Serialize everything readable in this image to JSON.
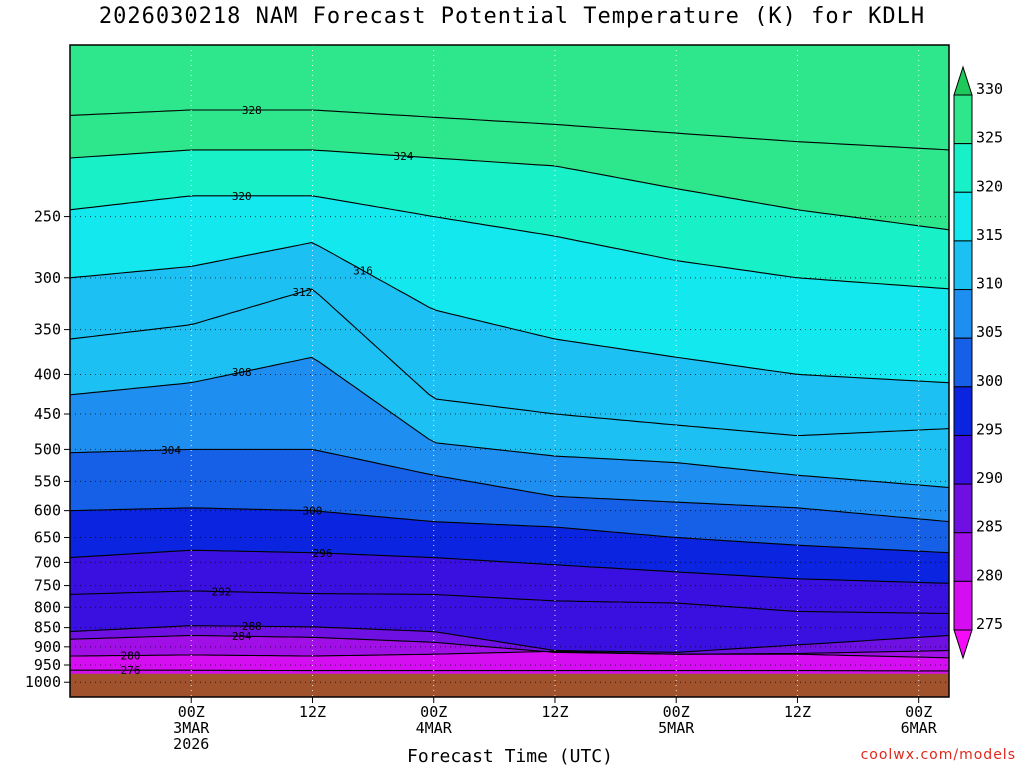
{
  "chart_data": {
    "type": "contour",
    "title": "2026030218 NAM Forecast Potential Temperature (K) for KDLH",
    "xlabel": "Forecast Time (UTC)",
    "ylabel": "",
    "credit": "coolwx.com/models",
    "y_axis": {
      "scale": "pressure (log)",
      "range": [
        1000,
        150
      ],
      "ticks": [
        250,
        300,
        350,
        400,
        450,
        500,
        550,
        600,
        650,
        700,
        750,
        800,
        850,
        900,
        950,
        1000
      ]
    },
    "x_axis": {
      "range_hours": [
        -6,
        81
      ],
      "ticks": [
        {
          "hour": 6,
          "lines": [
            "00Z",
            "3MAR",
            "2026"
          ]
        },
        {
          "hour": 18,
          "lines": [
            "12Z"
          ]
        },
        {
          "hour": 30,
          "lines": [
            "00Z",
            "4MAR"
          ]
        },
        {
          "hour": 42,
          "lines": [
            "12Z"
          ]
        },
        {
          "hour": 54,
          "lines": [
            "00Z",
            "5MAR"
          ]
        },
        {
          "hour": 66,
          "lines": [
            "12Z"
          ]
        },
        {
          "hour": 78,
          "lines": [
            "00Z",
            "6MAR"
          ]
        }
      ]
    },
    "grid": "dotted",
    "colorbar": {
      "labels": [
        330,
        325,
        320,
        315,
        310,
        305,
        300,
        295,
        290,
        285,
        280,
        275
      ],
      "bands": [
        {
          "lo": 330,
          "hi": 335,
          "color": "#1ec85a"
        },
        {
          "lo": 325,
          "hi": 330,
          "color": "#2ee68c"
        },
        {
          "lo": 320,
          "hi": 325,
          "color": "#18f0c8"
        },
        {
          "lo": 315,
          "hi": 320,
          "color": "#13e8ee"
        },
        {
          "lo": 310,
          "hi": 315,
          "color": "#1cc0f2"
        },
        {
          "lo": 305,
          "hi": 310,
          "color": "#1e8ef0"
        },
        {
          "lo": 300,
          "hi": 305,
          "color": "#1660e8"
        },
        {
          "lo": 295,
          "hi": 300,
          "color": "#0a24e0"
        },
        {
          "lo": 290,
          "hi": 295,
          "color": "#3a10e0"
        },
        {
          "lo": 285,
          "hi": 290,
          "color": "#6e10e2"
        },
        {
          "lo": 280,
          "hi": 285,
          "color": "#a00fe6"
        },
        {
          "lo": 275,
          "hi": 280,
          "color": "#d40ef0"
        },
        {
          "lo": 270,
          "hi": 275,
          "color": "#f40cf8"
        }
      ]
    },
    "ground_color": "#a0522d",
    "isentropes": [
      {
        "theta": 276,
        "label": "276",
        "label_hour": 0,
        "p": [
          965,
          965,
          966,
          966,
          966,
          966,
          966,
          967
        ]
      },
      {
        "theta": 280,
        "label": "280",
        "label_hour": 0,
        "p": [
          925,
          922,
          925,
          920,
          912,
          920,
          920,
          930
        ]
      },
      {
        "theta": 284,
        "label": "284",
        "label_hour": 11,
        "p": [
          880,
          870,
          875,
          888,
          915,
          920,
          918,
          910
        ]
      },
      {
        "theta": 288,
        "label": "288",
        "label_hour": 12,
        "p": [
          860,
          845,
          848,
          860,
          910,
          915,
          895,
          870
        ]
      },
      {
        "theta": 292,
        "label": "292",
        "label_hour": 9,
        "p": [
          770,
          762,
          768,
          770,
          785,
          790,
          810,
          815
        ]
      },
      {
        "theta": 296,
        "label": "296",
        "label_hour": 19,
        "p": [
          690,
          675,
          680,
          690,
          705,
          720,
          735,
          745
        ]
      },
      {
        "theta": 300,
        "label": "300",
        "label_hour": 18,
        "p": [
          600,
          595,
          600,
          620,
          630,
          650,
          665,
          680
        ]
      },
      {
        "theta": 304,
        "label": "304",
        "label_hour": 4,
        "p": [
          505,
          500,
          500,
          540,
          575,
          585,
          595,
          620
        ]
      },
      {
        "theta": 308,
        "label": "308",
        "label_hour": 11,
        "p": [
          425,
          410,
          380,
          490,
          510,
          520,
          540,
          560
        ]
      },
      {
        "theta": 312,
        "label": "312",
        "label_hour": 17,
        "p": [
          360,
          345,
          310,
          430,
          450,
          465,
          480,
          470
        ]
      },
      {
        "theta": 316,
        "label": "316",
        "label_hour": 23,
        "p": [
          300,
          290,
          270,
          330,
          360,
          380,
          400,
          410
        ]
      },
      {
        "theta": 320,
        "label": "320",
        "label_hour": 11,
        "p": [
          245,
          235,
          235,
          250,
          265,
          285,
          300,
          310
        ]
      },
      {
        "theta": 324,
        "label": "324",
        "label_hour": 27,
        "p": [
          210,
          205,
          205,
          210,
          215,
          230,
          245,
          260
        ]
      },
      {
        "theta": 328,
        "label": "328",
        "label_hour": 12,
        "p": [
          185,
          182,
          182,
          186,
          190,
          195,
          200,
          205
        ]
      }
    ],
    "isentrope_hours": [
      -6,
      6,
      18,
      30,
      42,
      54,
      66,
      81
    ]
  }
}
